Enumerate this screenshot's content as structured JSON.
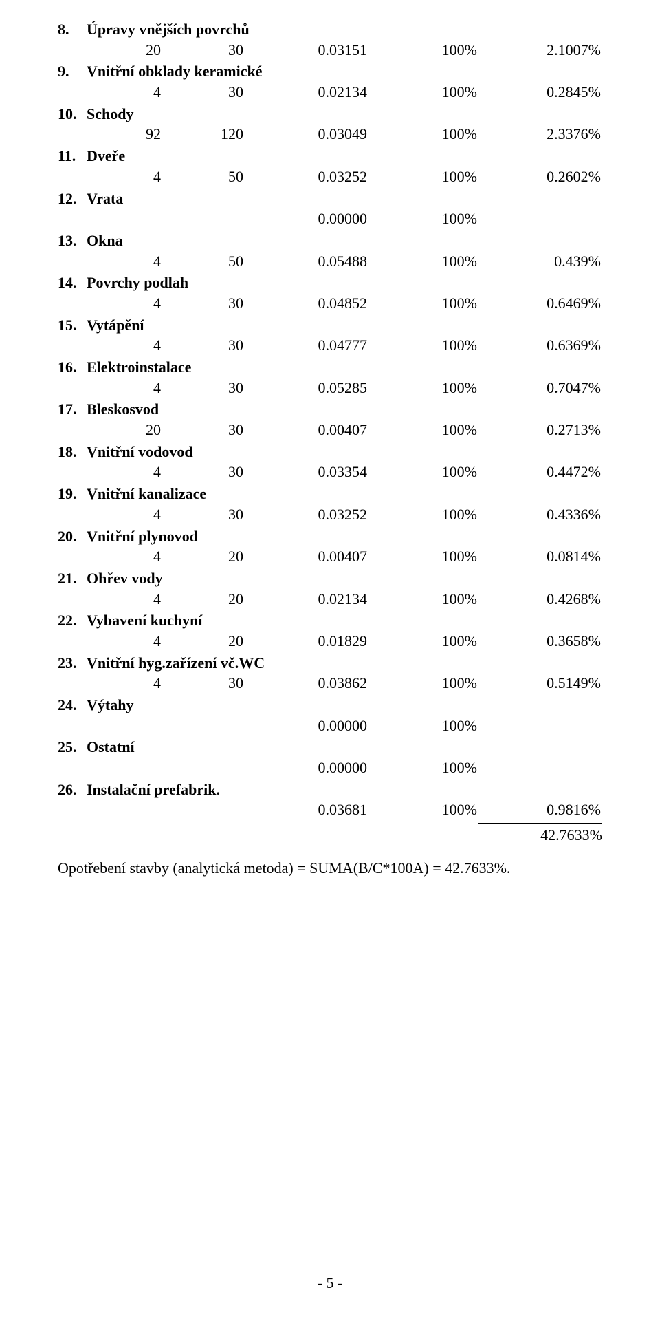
{
  "items": [
    {
      "num": "8.",
      "name": "Úpravy vnějších povrchů",
      "a": "20",
      "b": "30",
      "c": "0.03151",
      "d": "100%",
      "e": "2.1007%"
    },
    {
      "num": "9.",
      "name": "Vnitřní obklady keramické",
      "a": "4",
      "b": "30",
      "c": "0.02134",
      "d": "100%",
      "e": "0.2845%"
    },
    {
      "num": "10.",
      "name": "Schody",
      "a": "92",
      "b": "120",
      "c": "0.03049",
      "d": "100%",
      "e": "2.3376%"
    },
    {
      "num": "11.",
      "name": "Dveře",
      "a": "4",
      "b": "50",
      "c": "0.03252",
      "d": "100%",
      "e": "0.2602%"
    },
    {
      "num": "12.",
      "name": "Vrata",
      "cd_only": true,
      "c": "0.00000",
      "d": "100%"
    },
    {
      "num": "13.",
      "name": "Okna",
      "a": "4",
      "b": "50",
      "c": "0.05488",
      "d": "100%",
      "e": "0.439%"
    },
    {
      "num": "14.",
      "name": "Povrchy podlah",
      "a": "4",
      "b": "30",
      "c": "0.04852",
      "d": "100%",
      "e": "0.6469%"
    },
    {
      "num": "15.",
      "name": "Vytápění",
      "a": "4",
      "b": "30",
      "c": "0.04777",
      "d": "100%",
      "e": "0.6369%"
    },
    {
      "num": "16.",
      "name": "Elektroinstalace",
      "a": "4",
      "b": "30",
      "c": "0.05285",
      "d": "100%",
      "e": "0.7047%"
    },
    {
      "num": "17.",
      "name": "Bleskosvod",
      "a": "20",
      "b": "30",
      "c": "0.00407",
      "d": "100%",
      "e": "0.2713%"
    },
    {
      "num": "18.",
      "name": "Vnitřní vodovod",
      "a": "4",
      "b": "30",
      "c": "0.03354",
      "d": "100%",
      "e": "0.4472%"
    },
    {
      "num": "19.",
      "name": "Vnitřní kanalizace",
      "a": "4",
      "b": "30",
      "c": "0.03252",
      "d": "100%",
      "e": "0.4336%"
    },
    {
      "num": "20.",
      "name": "Vnitřní plynovod",
      "a": "4",
      "b": "20",
      "c": "0.00407",
      "d": "100%",
      "e": "0.0814%"
    },
    {
      "num": "21.",
      "name": "Ohřev vody",
      "a": "4",
      "b": "20",
      "c": "0.02134",
      "d": "100%",
      "e": "0.4268%"
    },
    {
      "num": "22.",
      "name": "Vybavení kuchyní",
      "a": "4",
      "b": "20",
      "c": "0.01829",
      "d": "100%",
      "e": "0.3658%"
    },
    {
      "num": "23.",
      "name": "Vnitřní hyg.zařízení vč.WC",
      "a": "4",
      "b": "30",
      "c": "0.03862",
      "d": "100%",
      "e": "0.5149%"
    },
    {
      "num": "24.",
      "name": "Výtahy",
      "cd_only": true,
      "c": "0.00000",
      "d": "100%"
    },
    {
      "num": "25.",
      "name": "Ostatní",
      "cd_only": true,
      "c": "0.00000",
      "d": "100%"
    },
    {
      "num": "26.",
      "name": "Instalační prefabrik.",
      "cd_only_e": true,
      "c": "0.03681",
      "d": "100%",
      "e": "0.9816%"
    }
  ],
  "total": "42.7633%",
  "footer": "Opotřebení stavby (analytická metoda) = SUMA(B/C*100A) = 42.7633%.",
  "page_number": "- 5 -",
  "colors": {
    "text": "#000000",
    "background": "#ffffff",
    "rule": "#000000"
  },
  "typography": {
    "font_family": "Times New Roman",
    "body_size_pt": 16,
    "bold_headings": true
  }
}
